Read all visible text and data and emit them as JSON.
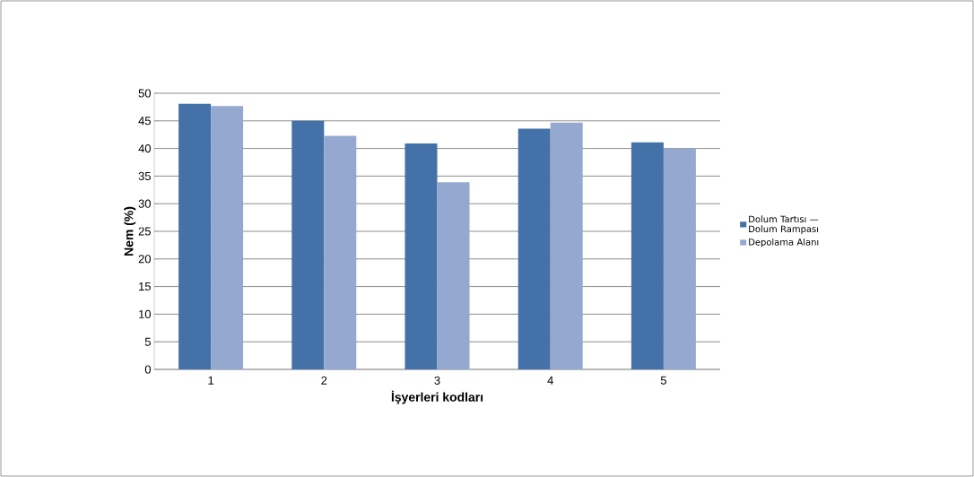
{
  "chart_data": {
    "type": "bar",
    "xlabel": "İşyerleri kodları",
    "ylabel": "Nem (%)",
    "categories": [
      "1",
      "2",
      "3",
      "4",
      "5"
    ],
    "series": [
      {
        "name": "Dolum Tartısı — Dolum Rampası",
        "color": "#4472a8",
        "values": [
          48.1,
          45.0,
          40.9,
          43.6,
          41.1
        ]
      },
      {
        "name": "Depolama Alanı",
        "color": "#95a9d0",
        "values": [
          47.7,
          42.3,
          33.9,
          44.7,
          40.0
        ]
      }
    ],
    "ylim": [
      0,
      50
    ],
    "yticks": [
      0,
      5,
      10,
      15,
      20,
      25,
      30,
      35,
      40,
      45,
      50
    ],
    "grid": "y",
    "legend": "right"
  }
}
